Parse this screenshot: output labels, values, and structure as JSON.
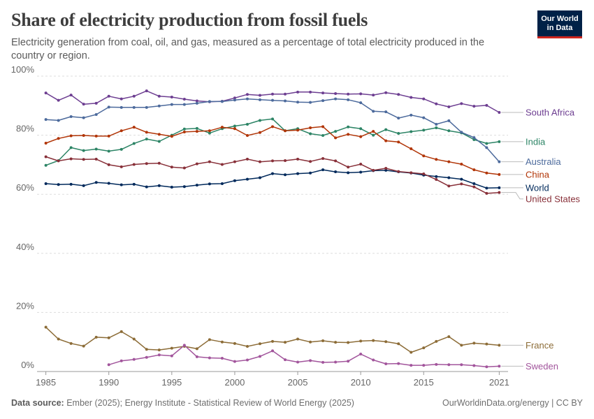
{
  "header": {
    "title": "Share of electricity production from fossil fuels",
    "subtitle": "Electricity generation from coal, oil, and gas, measured as a percentage of total electricity produced in the country or region."
  },
  "logo": {
    "line1": "Our World",
    "line2": "in Data"
  },
  "footer": {
    "source_label": "Data source:",
    "source_text": "Ember (2025); Energy Institute - Statistical Review of World Energy (2025)",
    "right_text": "OurWorldinData.org/energy | CC BY"
  },
  "colors": {
    "brand_navy": "#002147",
    "brand_red": "#ce261e",
    "grid": "#dddddd"
  },
  "chart_data": {
    "type": "line",
    "title": "Share of electricity production from fossil fuels",
    "ylabel": "",
    "xlabel": "",
    "xlim": [
      1984.3,
      2021.7
    ],
    "ylim": [
      0,
      100
    ],
    "y_ticks": [
      0,
      20,
      40,
      60,
      80,
      100
    ],
    "y_tick_labels": [
      "0%",
      "20%",
      "40%",
      "60%",
      "80%",
      "100%"
    ],
    "x_ticks": [
      1985,
      1990,
      1995,
      2000,
      2005,
      2010,
      2015,
      2021
    ],
    "grid": "horizontal dashed",
    "legend": "inline labels at right end of lines",
    "series": [
      {
        "name": "South Africa",
        "color": "#6d3e91",
        "start": 1985,
        "values": [
          94.3,
          91.8,
          93.6,
          90.5,
          90.8,
          93.2,
          92.3,
          93.2,
          95.0,
          93.2,
          92.9,
          92.2,
          91.6,
          91.3,
          91.5,
          92.6,
          93.8,
          93.5,
          93.9,
          93.9,
          94.6,
          94.6,
          94.3,
          94.1,
          93.9,
          94.0,
          93.6,
          94.4,
          93.8,
          92.8,
          92.3,
          90.6,
          89.6,
          90.7,
          89.8,
          90.1,
          87.7
        ]
      },
      {
        "name": "India",
        "color": "#2c8465",
        "start": 1985,
        "values": [
          69.8,
          71.4,
          75.8,
          74.8,
          75.3,
          74.6,
          75.2,
          77.2,
          78.7,
          77.9,
          80.0,
          82.1,
          82.3,
          80.7,
          82.2,
          83.1,
          83.7,
          85.0,
          85.5,
          81.5,
          82.2,
          80.5,
          79.9,
          81.3,
          82.8,
          82.2,
          80.0,
          81.9,
          80.6,
          81.2,
          81.7,
          82.5,
          81.5,
          80.8,
          78.5,
          77.2,
          77.8
        ]
      },
      {
        "name": "Australia",
        "color": "#4c6a9c",
        "start": 1985,
        "values": [
          85.3,
          85.0,
          86.3,
          85.9,
          87.0,
          89.5,
          89.4,
          89.4,
          89.4,
          89.9,
          90.4,
          90.4,
          90.8,
          91.4,
          91.4,
          91.9,
          92.3,
          92.0,
          91.8,
          91.6,
          91.2,
          91.1,
          91.7,
          92.3,
          92.0,
          91.0,
          88.1,
          87.9,
          85.8,
          86.8,
          85.9,
          83.7,
          84.9,
          81.0,
          79.2,
          75.8,
          71.0
        ]
      },
      {
        "name": "China",
        "color": "#b13507",
        "start": 1985,
        "values": [
          77.3,
          78.9,
          79.8,
          79.9,
          79.7,
          79.7,
          81.5,
          82.7,
          81.0,
          80.3,
          79.6,
          81.1,
          81.3,
          81.5,
          82.7,
          82.2,
          79.9,
          80.9,
          82.9,
          81.5,
          81.7,
          82.5,
          82.9,
          79.1,
          80.3,
          79.5,
          81.3,
          78.1,
          77.7,
          75.4,
          73.0,
          71.8,
          71.0,
          70.2,
          68.3,
          67.2,
          66.7
        ]
      },
      {
        "name": "World",
        "color": "#00295b",
        "start": 1985,
        "values": [
          63.6,
          63.3,
          63.4,
          62.9,
          64.0,
          63.7,
          63.2,
          63.4,
          62.5,
          62.9,
          62.4,
          62.6,
          63.1,
          63.5,
          63.6,
          64.6,
          65.1,
          65.6,
          67.0,
          66.6,
          67.0,
          67.2,
          68.3,
          67.6,
          67.3,
          67.5,
          68.0,
          68.1,
          67.6,
          67.2,
          66.5,
          66.0,
          65.6,
          65.1,
          63.6,
          62.1,
          62.2
        ]
      },
      {
        "name": "United States",
        "color": "#883039",
        "start": 1985,
        "values": [
          72.7,
          71.3,
          72.0,
          71.8,
          71.9,
          70.0,
          69.3,
          70.1,
          70.4,
          70.5,
          69.2,
          68.9,
          70.3,
          71.0,
          70.1,
          71.0,
          71.9,
          71.0,
          71.3,
          71.4,
          71.9,
          71.1,
          72.1,
          71.3,
          69.2,
          70.2,
          68.1,
          68.8,
          67.7,
          67.3,
          66.9,
          65.0,
          62.8,
          63.5,
          62.5,
          60.3,
          60.6
        ]
      },
      {
        "name": "France",
        "color": "#8c6c37",
        "start": 1985,
        "values": [
          15.0,
          11.0,
          9.5,
          8.6,
          11.6,
          11.4,
          13.5,
          11.0,
          7.5,
          7.3,
          7.9,
          8.5,
          7.7,
          10.8,
          10.0,
          9.5,
          8.5,
          9.4,
          10.2,
          9.9,
          11.0,
          10.0,
          10.4,
          9.9,
          9.8,
          10.3,
          10.5,
          10.1,
          9.4,
          6.5,
          8.0,
          10.2,
          11.8,
          8.9,
          9.6,
          9.3,
          8.9
        ]
      },
      {
        "name": "Sweden",
        "color": "#a2559c",
        "start": 1990,
        "values": [
          2.3,
          3.6,
          4.1,
          4.8,
          5.6,
          5.3,
          8.9,
          5.0,
          4.6,
          4.5,
          3.4,
          3.9,
          5.1,
          7.0,
          4.0,
          3.2,
          3.7,
          3.1,
          3.2,
          3.5,
          5.9,
          3.9,
          2.6,
          2.7,
          2.1,
          2.1,
          2.4,
          2.3,
          2.3,
          2.0,
          1.6,
          1.8
        ]
      }
    ]
  }
}
